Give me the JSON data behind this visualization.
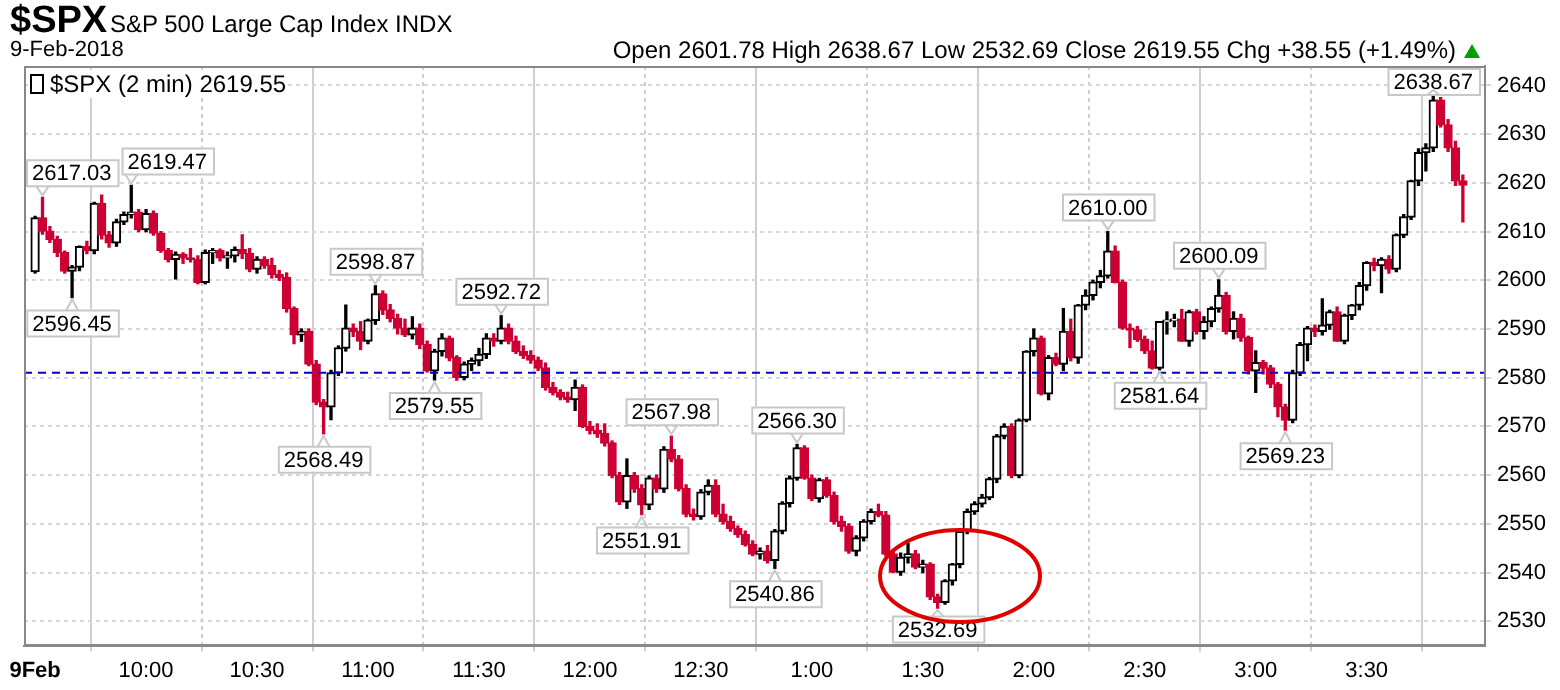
{
  "chart_data": {
    "type": "candlestick",
    "title": "$SPX",
    "subtitle": "S&P 500 Large Cap Index INDX",
    "annotations": [
      "9-Feb-2018",
      "Open 2601.78 High 2638.67 Low 2532.69 Close 2619.55 Chg +38.55 (+1.49%)",
      {
        "text": "2617.03",
        "x": "2018-02-09T09:32",
        "y": 2617.03
      },
      {
        "text": "2619.47",
        "x": "2018-02-09T09:56",
        "y": 2619.47
      },
      {
        "text": "2596.45",
        "x": "2018-02-09T09:40",
        "y": 2596.45
      },
      {
        "text": "2598.87",
        "x": "2018-02-09T11:02",
        "y": 2598.87
      },
      {
        "text": "2592.72",
        "x": "2018-02-09T11:36",
        "y": 2592.72
      },
      {
        "text": "2579.55",
        "x": "2018-02-09T11:18",
        "y": 2579.55
      },
      {
        "text": "2568.49",
        "x": "2018-02-09T10:48",
        "y": 2568.49
      },
      {
        "text": "2567.98",
        "x": "2018-02-09T12:22",
        "y": 2567.98
      },
      {
        "text": "2551.91",
        "x": "2018-02-09T12:14",
        "y": 2551.91
      },
      {
        "text": "2566.30",
        "x": "2018-02-09T12:56",
        "y": 2566.3
      },
      {
        "text": "2540.86",
        "x": "2018-02-09T12:50",
        "y": 2540.86
      },
      {
        "text": "2532.69",
        "x": "2018-02-09T13:34",
        "y": 2532.69
      },
      {
        "text": "2610.00",
        "x": "2018-02-09T14:20",
        "y": 2610.0
      },
      {
        "text": "2581.64",
        "x": "2018-02-09T14:34",
        "y": 2581.64
      },
      {
        "text": "2600.09",
        "x": "2018-02-09T14:50",
        "y": 2600.09
      },
      {
        "text": "2569.23",
        "x": "2018-02-09T15:08",
        "y": 2569.23
      },
      {
        "text": "2638.67",
        "x": "2018-02-09T15:48",
        "y": 2638.67
      }
    ],
    "x": [
      "2018-02-09T09:30",
      "2018-02-09T09:32",
      "2018-02-09T09:34",
      "2018-02-09T09:36",
      "2018-02-09T09:38",
      "2018-02-09T09:40",
      "2018-02-09T09:42",
      "2018-02-09T09:44",
      "2018-02-09T09:46",
      "2018-02-09T09:48",
      "2018-02-09T09:50",
      "2018-02-09T09:52",
      "2018-02-09T09:54",
      "2018-02-09T09:56",
      "2018-02-09T09:58",
      "2018-02-09T10:00",
      "2018-02-09T10:02",
      "2018-02-09T10:04",
      "2018-02-09T10:06",
      "2018-02-09T10:08",
      "2018-02-09T10:10",
      "2018-02-09T10:12",
      "2018-02-09T10:14",
      "2018-02-09T10:16",
      "2018-02-09T10:18",
      "2018-02-09T10:20",
      "2018-02-09T10:22",
      "2018-02-09T10:24",
      "2018-02-09T10:26",
      "2018-02-09T10:28",
      "2018-02-09T10:30",
      "2018-02-09T10:32",
      "2018-02-09T10:34",
      "2018-02-09T10:36",
      "2018-02-09T10:38",
      "2018-02-09T10:40",
      "2018-02-09T10:42",
      "2018-02-09T10:44",
      "2018-02-09T10:46",
      "2018-02-09T10:48",
      "2018-02-09T10:50",
      "2018-02-09T10:52",
      "2018-02-09T10:54",
      "2018-02-09T10:56",
      "2018-02-09T10:58",
      "2018-02-09T11:00",
      "2018-02-09T11:02",
      "2018-02-09T11:04",
      "2018-02-09T11:06",
      "2018-02-09T11:08",
      "2018-02-09T11:10",
      "2018-02-09T11:12",
      "2018-02-09T11:14",
      "2018-02-09T11:16",
      "2018-02-09T11:18",
      "2018-02-09T11:20",
      "2018-02-09T11:22",
      "2018-02-09T11:24",
      "2018-02-09T11:26",
      "2018-02-09T11:28",
      "2018-02-09T11:30",
      "2018-02-09T11:32",
      "2018-02-09T11:34",
      "2018-02-09T11:36",
      "2018-02-09T11:38",
      "2018-02-09T11:40",
      "2018-02-09T11:42",
      "2018-02-09T11:44",
      "2018-02-09T11:46",
      "2018-02-09T11:48",
      "2018-02-09T11:50",
      "2018-02-09T11:52",
      "2018-02-09T11:54",
      "2018-02-09T11:56",
      "2018-02-09T11:58",
      "2018-02-09T12:00",
      "2018-02-09T12:02",
      "2018-02-09T12:04",
      "2018-02-09T12:06",
      "2018-02-09T12:08",
      "2018-02-09T12:10",
      "2018-02-09T12:12",
      "2018-02-09T12:14",
      "2018-02-09T12:16",
      "2018-02-09T12:18",
      "2018-02-09T12:20",
      "2018-02-09T12:22",
      "2018-02-09T12:24",
      "2018-02-09T12:26",
      "2018-02-09T12:28",
      "2018-02-09T12:30",
      "2018-02-09T12:32",
      "2018-02-09T12:34",
      "2018-02-09T12:36",
      "2018-02-09T12:38",
      "2018-02-09T12:40",
      "2018-02-09T12:42",
      "2018-02-09T12:44",
      "2018-02-09T12:46",
      "2018-02-09T12:48",
      "2018-02-09T12:50",
      "2018-02-09T12:52",
      "2018-02-09T12:54",
      "2018-02-09T12:56",
      "2018-02-09T12:58",
      "2018-02-09T13:00",
      "2018-02-09T13:02",
      "2018-02-09T13:04",
      "2018-02-09T13:06",
      "2018-02-09T13:08",
      "2018-02-09T13:10",
      "2018-02-09T13:12",
      "2018-02-09T13:14",
      "2018-02-09T13:16",
      "2018-02-09T13:18",
      "2018-02-09T13:20",
      "2018-02-09T13:22",
      "2018-02-09T13:24",
      "2018-02-09T13:26",
      "2018-02-09T13:28",
      "2018-02-09T13:30",
      "2018-02-09T13:32",
      "2018-02-09T13:34",
      "2018-02-09T13:36",
      "2018-02-09T13:38",
      "2018-02-09T13:40",
      "2018-02-09T13:42",
      "2018-02-09T13:44",
      "2018-02-09T13:46",
      "2018-02-09T13:48",
      "2018-02-09T13:50",
      "2018-02-09T13:52",
      "2018-02-09T13:54",
      "2018-02-09T13:56",
      "2018-02-09T13:58",
      "2018-02-09T14:00",
      "2018-02-09T14:02",
      "2018-02-09T14:04",
      "2018-02-09T14:06",
      "2018-02-09T14:08",
      "2018-02-09T14:10",
      "2018-02-09T14:12",
      "2018-02-09T14:14",
      "2018-02-09T14:16",
      "2018-02-09T14:18",
      "2018-02-09T14:20",
      "2018-02-09T14:22",
      "2018-02-09T14:24",
      "2018-02-09T14:26",
      "2018-02-09T14:28",
      "2018-02-09T14:30",
      "2018-02-09T14:32",
      "2018-02-09T14:34",
      "2018-02-09T14:36",
      "2018-02-09T14:38",
      "2018-02-09T14:40",
      "2018-02-09T14:42",
      "2018-02-09T14:44",
      "2018-02-09T14:46",
      "2018-02-09T14:48",
      "2018-02-09T14:50",
      "2018-02-09T14:52",
      "2018-02-09T14:54",
      "2018-02-09T14:56",
      "2018-02-09T14:58",
      "2018-02-09T15:00",
      "2018-02-09T15:02",
      "2018-02-09T15:04",
      "2018-02-09T15:06",
      "2018-02-09T15:08",
      "2018-02-09T15:10",
      "2018-02-09T15:12",
      "2018-02-09T15:14",
      "2018-02-09T15:16",
      "2018-02-09T15:18",
      "2018-02-09T15:20",
      "2018-02-09T15:22",
      "2018-02-09T15:24",
      "2018-02-09T15:26",
      "2018-02-09T15:28",
      "2018-02-09T15:30",
      "2018-02-09T15:32",
      "2018-02-09T15:34",
      "2018-02-09T15:36",
      "2018-02-09T15:38",
      "2018-02-09T15:40",
      "2018-02-09T15:42",
      "2018-02-09T15:44",
      "2018-02-09T15:46",
      "2018-02-09T15:48",
      "2018-02-09T15:50",
      "2018-02-09T15:52",
      "2018-02-09T15:54",
      "2018-02-09T15:56"
    ],
    "series": [
      {
        "name": "$SPX (2 min) 2619.55",
        "color": "#000000",
        "ohlc": [
          [
            2601.78,
            2613.1,
            2601.5,
            2612.8
          ],
          [
            2612.8,
            2617.03,
            2609.5,
            2610.1
          ],
          [
            2610.1,
            2611,
            2607.8,
            2608.4
          ],
          [
            2608.4,
            2609,
            2604.9,
            2605.7
          ],
          [
            2605.7,
            2606,
            2601.5,
            2601.9
          ],
          [
            2601.9,
            2603,
            2596.45,
            2602.7
          ],
          [
            2602.7,
            2607,
            2602,
            2606.9
          ],
          [
            2606.9,
            2608,
            2605.5,
            2606.1
          ],
          [
            2606.1,
            2616,
            2605.5,
            2615.8
          ],
          [
            2615.8,
            2617.5,
            2608.5,
            2609.3
          ],
          [
            2609.3,
            2610,
            2606.8,
            2607.7
          ],
          [
            2607.7,
            2612.5,
            2607,
            2612
          ],
          [
            2612,
            2614,
            2611.5,
            2613.5
          ],
          [
            2613.5,
            2619.47,
            2612.8,
            2614
          ],
          [
            2614,
            2614.5,
            2610,
            2610.4
          ],
          [
            2610.4,
            2614.5,
            2610,
            2613.7
          ],
          [
            2613.7,
            2614.2,
            2609.3,
            2609.7
          ],
          [
            2609.7,
            2610,
            2605.8,
            2606.1
          ],
          [
            2606.1,
            2606.5,
            2603.8,
            2604.3
          ],
          [
            2604.3,
            2605.8,
            2600.3,
            2605.3
          ],
          [
            2605.3,
            2605.6,
            2603.5,
            2604.6
          ],
          [
            2604.6,
            2606.5,
            2603.8,
            2604.3
          ],
          [
            2604.3,
            2605,
            2599.3,
            2599.6
          ],
          [
            2599.6,
            2606.2,
            2599.3,
            2605.7
          ],
          [
            2605.7,
            2606.5,
            2603.5,
            2606.1
          ],
          [
            2606.1,
            2606.4,
            2604,
            2604.6
          ],
          [
            2604.6,
            2605.8,
            2602.5,
            2605
          ],
          [
            2605,
            2606.8,
            2603.8,
            2606.3
          ],
          [
            2606.3,
            2609.3,
            2604.5,
            2605.5
          ],
          [
            2605.5,
            2606.5,
            2601.8,
            2602.3
          ],
          [
            2602.3,
            2604.8,
            2601.5,
            2604.3
          ],
          [
            2604.3,
            2604.8,
            2602.5,
            2603
          ],
          [
            2603,
            2604.5,
            2600.5,
            2601.2
          ],
          [
            2601.2,
            2602,
            2600,
            2600.6
          ],
          [
            2600.6,
            2601.5,
            2593.5,
            2594.2
          ],
          [
            2594.2,
            2594.5,
            2587,
            2588.8
          ],
          [
            2588.8,
            2590,
            2587.5,
            2589.5
          ],
          [
            2589.5,
            2590,
            2582.5,
            2582.8
          ],
          [
            2582.8,
            2583.5,
            2574.5,
            2575
          ],
          [
            2575,
            2575.5,
            2568.49,
            2574
          ],
          [
            2574,
            2581.5,
            2571.4,
            2581
          ],
          [
            2581,
            2586.5,
            2580.5,
            2586.1
          ],
          [
            2586.1,
            2594.9,
            2585.5,
            2590.2
          ],
          [
            2590.2,
            2591,
            2588.5,
            2589.5
          ],
          [
            2589.5,
            2591.5,
            2585.8,
            2587.5
          ],
          [
            2587.5,
            2592,
            2587,
            2591.8
          ],
          [
            2591.8,
            2598.87,
            2591,
            2597.2
          ],
          [
            2597.2,
            2597.8,
            2593,
            2593.9
          ],
          [
            2593.9,
            2595,
            2591.5,
            2592.2
          ],
          [
            2592.2,
            2593,
            2589,
            2590.2
          ],
          [
            2590.2,
            2592,
            2588.5,
            2588.8
          ],
          [
            2588.8,
            2592.5,
            2588,
            2590.2
          ],
          [
            2590.2,
            2591,
            2586,
            2586.8
          ],
          [
            2586.8,
            2587.5,
            2581.2,
            2581.4
          ],
          [
            2581.4,
            2585.8,
            2579.55,
            2585.4
          ],
          [
            2585.4,
            2589,
            2584.5,
            2588.1
          ],
          [
            2588.1,
            2588.5,
            2583.5,
            2584.1
          ],
          [
            2584.1,
            2584.5,
            2579.5,
            2580.1
          ],
          [
            2580.1,
            2583.2,
            2579.6,
            2582.8
          ],
          [
            2582.8,
            2584,
            2581.5,
            2583.5
          ],
          [
            2583.5,
            2586,
            2582.5,
            2584.8
          ],
          [
            2584.8,
            2589,
            2584,
            2588.1
          ],
          [
            2588.1,
            2589,
            2586.5,
            2587.5
          ],
          [
            2587.5,
            2592.72,
            2587,
            2590.2
          ],
          [
            2590.2,
            2591,
            2587,
            2587.5
          ],
          [
            2587.5,
            2588.5,
            2585,
            2585.4
          ],
          [
            2585.4,
            2586.5,
            2584,
            2584.6
          ],
          [
            2584.6,
            2585.5,
            2583,
            2583.6
          ],
          [
            2583.6,
            2584.2,
            2581.5,
            2582
          ],
          [
            2582,
            2583,
            2577.5,
            2578
          ],
          [
            2578,
            2579,
            2576.5,
            2577
          ],
          [
            2577,
            2577.5,
            2575.5,
            2576
          ],
          [
            2576,
            2577,
            2575,
            2575.5
          ],
          [
            2575.5,
            2579.5,
            2573.3,
            2578
          ],
          [
            2578,
            2578.5,
            2569.8,
            2570
          ],
          [
            2570,
            2571,
            2568.5,
            2569.2
          ],
          [
            2569.2,
            2570.5,
            2567.8,
            2568.5
          ],
          [
            2568.5,
            2570.5,
            2566,
            2566.6
          ],
          [
            2566.6,
            2567,
            2559.5,
            2559.9
          ],
          [
            2559.9,
            2560.5,
            2554,
            2554.5
          ],
          [
            2554.5,
            2563.3,
            2553.2,
            2559.9
          ],
          [
            2559.9,
            2560.5,
            2556.5,
            2557.2
          ],
          [
            2557.2,
            2558,
            2551.91,
            2553.9
          ],
          [
            2553.9,
            2559.8,
            2553,
            2559.4
          ],
          [
            2559.4,
            2560,
            2556.5,
            2557.2
          ],
          [
            2557.2,
            2565.8,
            2556.5,
            2565.3
          ],
          [
            2565.3,
            2567.98,
            2562.8,
            2563.3
          ],
          [
            2563.3,
            2564,
            2556.8,
            2557.2
          ],
          [
            2557.2,
            2558,
            2551.5,
            2552
          ],
          [
            2552,
            2553,
            2550.8,
            2551.5
          ],
          [
            2551.5,
            2557,
            2551,
            2556.5
          ],
          [
            2556.5,
            2559,
            2556,
            2557.9
          ],
          [
            2557.9,
            2559,
            2551.5,
            2552
          ],
          [
            2552,
            2554,
            2550,
            2550.5
          ],
          [
            2550.5,
            2551.5,
            2548.5,
            2549
          ],
          [
            2549,
            2549.5,
            2547.3,
            2547.8
          ],
          [
            2547.8,
            2548.5,
            2545.5,
            2545.8
          ],
          [
            2545.8,
            2546.5,
            2543.5,
            2543.8
          ],
          [
            2543.8,
            2545,
            2542.8,
            2544.4
          ],
          [
            2544.4,
            2545.5,
            2542,
            2542.5
          ],
          [
            2542.5,
            2548.8,
            2540.86,
            2548.5
          ],
          [
            2548.5,
            2554.5,
            2548,
            2554.2
          ],
          [
            2554.2,
            2559.8,
            2553.5,
            2559.4
          ],
          [
            2559.4,
            2566.3,
            2559,
            2565.6
          ],
          [
            2565.6,
            2566,
            2559.2,
            2559.4
          ],
          [
            2559.4,
            2560,
            2554.8,
            2555.2
          ],
          [
            2555.2,
            2559.3,
            2554.5,
            2559
          ],
          [
            2559,
            2559.5,
            2555.5,
            2555.8
          ],
          [
            2555.8,
            2556.5,
            2550,
            2550.5
          ],
          [
            2550.5,
            2551.5,
            2548.5,
            2549.5
          ],
          [
            2549.5,
            2550,
            2544,
            2544.4
          ],
          [
            2544.4,
            2547.5,
            2543.5,
            2547.1
          ],
          [
            2547.1,
            2550.8,
            2546.5,
            2550.5
          ],
          [
            2550.5,
            2553,
            2550,
            2552.5
          ],
          [
            2552.5,
            2554,
            2551.5,
            2551.8
          ],
          [
            2551.8,
            2552.5,
            2543.5,
            2543.8
          ],
          [
            2543.8,
            2544.5,
            2540,
            2540.1
          ],
          [
            2540.1,
            2544,
            2539.5,
            2543.1
          ],
          [
            2543.1,
            2546,
            2542,
            2543.8
          ],
          [
            2543.8,
            2544.5,
            2540.8,
            2541.1
          ],
          [
            2541.1,
            2542.5,
            2540,
            2541.7
          ],
          [
            2541.7,
            2542,
            2534.5,
            2535
          ],
          [
            2535,
            2535.5,
            2532.69,
            2533.9
          ],
          [
            2533.9,
            2538.5,
            2533.5,
            2538.3
          ],
          [
            2538.3,
            2541.8,
            2537.5,
            2541.7
          ],
          [
            2541.7,
            2548.5,
            2541,
            2548.4
          ],
          [
            2548.4,
            2553,
            2548,
            2552.5
          ],
          [
            2552.5,
            2554.5,
            2552,
            2554.1
          ],
          [
            2554.1,
            2556,
            2553.5,
            2555.4
          ],
          [
            2555.4,
            2559.5,
            2555,
            2559.2
          ],
          [
            2559.2,
            2568.3,
            2558.5,
            2568
          ],
          [
            2568,
            2570.5,
            2567.5,
            2570
          ],
          [
            2570,
            2570.5,
            2559.5,
            2559.9
          ],
          [
            2559.9,
            2571.5,
            2559.5,
            2571.3
          ],
          [
            2571.3,
            2585.5,
            2571,
            2585.4
          ],
          [
            2585.4,
            2590,
            2584.5,
            2588.1
          ],
          [
            2588.1,
            2588.5,
            2576.5,
            2576.7
          ],
          [
            2576.7,
            2584.5,
            2575.5,
            2584.1
          ],
          [
            2584.1,
            2585,
            2582.5,
            2582.8
          ],
          [
            2582.8,
            2594.2,
            2581.5,
            2589.5
          ],
          [
            2589.5,
            2592,
            2583.5,
            2584.1
          ],
          [
            2584.1,
            2595,
            2583,
            2594.9
          ],
          [
            2594.9,
            2598,
            2594,
            2596.9
          ],
          [
            2596.9,
            2600,
            2596,
            2599.6
          ],
          [
            2599.6,
            2602,
            2598.5,
            2600.9
          ],
          [
            2600.9,
            2610.0,
            2600.5,
            2606
          ],
          [
            2606,
            2607,
            2599.5,
            2599.6
          ],
          [
            2599.6,
            2600,
            2590,
            2590.2
          ],
          [
            2590.2,
            2591,
            2586.2,
            2589.8
          ],
          [
            2589.8,
            2590.5,
            2587.5,
            2587.9
          ],
          [
            2587.9,
            2588.5,
            2585,
            2585.5
          ],
          [
            2585.5,
            2587.5,
            2581.8,
            2582
          ],
          [
            2582,
            2591.5,
            2581.64,
            2591.5
          ],
          [
            2591.5,
            2593.5,
            2589,
            2591.8
          ],
          [
            2591.8,
            2593,
            2590.5,
            2592
          ],
          [
            2592,
            2594,
            2587.5,
            2587.5
          ],
          [
            2587.5,
            2593.8,
            2586.5,
            2593.5
          ],
          [
            2593.5,
            2594,
            2589,
            2589.5
          ],
          [
            2589.5,
            2592.5,
            2588,
            2591.5
          ],
          [
            2591.5,
            2594.5,
            2590.5,
            2594.2
          ],
          [
            2594.2,
            2600.09,
            2593.5,
            2596.9
          ],
          [
            2596.9,
            2597.5,
            2589,
            2589.5
          ],
          [
            2589.5,
            2593.5,
            2588,
            2592.2
          ],
          [
            2592.2,
            2593,
            2587.5,
            2588.2
          ],
          [
            2588.2,
            2588.5,
            2580.8,
            2581.4
          ],
          [
            2581.4,
            2585.5,
            2577,
            2583.1
          ],
          [
            2583.1,
            2583.5,
            2580.8,
            2582
          ],
          [
            2582,
            2582.5,
            2578,
            2578.7
          ],
          [
            2578.7,
            2579,
            2572,
            2574
          ],
          [
            2574,
            2574.5,
            2569.23,
            2571.3
          ],
          [
            2571.3,
            2581.5,
            2570.8,
            2581
          ],
          [
            2581,
            2587.2,
            2580.5,
            2586.8
          ],
          [
            2586.8,
            2590.5,
            2583.5,
            2590.2
          ],
          [
            2590.2,
            2590.8,
            2588.5,
            2589.5
          ],
          [
            2589.5,
            2596.2,
            2588.8,
            2590.8
          ],
          [
            2590.8,
            2593.8,
            2590,
            2593.5
          ],
          [
            2593.5,
            2594.5,
            2587.5,
            2587.5
          ],
          [
            2587.5,
            2593,
            2587,
            2592.8
          ],
          [
            2592.8,
            2595,
            2592,
            2594.9
          ],
          [
            2594.9,
            2599.5,
            2594,
            2598.9
          ],
          [
            2598.9,
            2603.8,
            2598,
            2603.6
          ],
          [
            2603.6,
            2604.5,
            2602,
            2603
          ],
          [
            2603,
            2604.6,
            2597.5,
            2604.3
          ],
          [
            2604.3,
            2605,
            2601.5,
            2602.3
          ],
          [
            2602.3,
            2609.5,
            2601.8,
            2609.3
          ],
          [
            2609.3,
            2613.5,
            2608.8,
            2613
          ],
          [
            2613,
            2620.5,
            2612.5,
            2620.4
          ],
          [
            2620.4,
            2627,
            2619.5,
            2626.2
          ],
          [
            2626.2,
            2628,
            2622.5,
            2627.2
          ],
          [
            2627.2,
            2638.67,
            2626.5,
            2637
          ],
          [
            2637,
            2637.5,
            2631.5,
            2631.9
          ],
          [
            2631.9,
            2633,
            2626.5,
            2627.2
          ],
          [
            2627.2,
            2628.5,
            2619.5,
            2620.4
          ],
          [
            2620.4,
            2621.6,
            2612,
            2619.55
          ]
        ],
        "colors": [
          "#000000",
          "#cc0033",
          "#cc0033",
          "#cc0033",
          "#cc0033",
          "#000000",
          "#000000",
          "#cc0033",
          "#000000",
          "#cc0033",
          "#cc0033",
          "#000000",
          "#000000",
          "#000000",
          "#cc0033",
          "#000000",
          "#cc0033",
          "#cc0033",
          "#cc0033",
          "#000000",
          "#cc0033",
          "#cc0033",
          "#cc0033",
          "#000000",
          "#000000",
          "#cc0033",
          "#000000",
          "#000000",
          "#cc0033",
          "#cc0033",
          "#000000",
          "#cc0033",
          "#cc0033",
          "#cc0033",
          "#cc0033",
          "#cc0033",
          "#000000",
          "#cc0033",
          "#cc0033",
          "#cc0033",
          "#000000",
          "#000000",
          "#000000",
          "#cc0033",
          "#cc0033",
          "#000000",
          "#000000",
          "#cc0033",
          "#cc0033",
          "#cc0033",
          "#cc0033",
          "#000000",
          "#cc0033",
          "#cc0033",
          "#000000",
          "#000000",
          "#cc0033",
          "#cc0033",
          "#000000",
          "#000000",
          "#000000",
          "#000000",
          "#cc0033",
          "#000000",
          "#cc0033",
          "#cc0033",
          "#cc0033",
          "#cc0033",
          "#cc0033",
          "#cc0033",
          "#cc0033",
          "#cc0033",
          "#cc0033",
          "#000000",
          "#cc0033",
          "#cc0033",
          "#cc0033",
          "#cc0033",
          "#cc0033",
          "#cc0033",
          "#000000",
          "#cc0033",
          "#cc0033",
          "#000000",
          "#cc0033",
          "#000000",
          "#cc0033",
          "#cc0033",
          "#cc0033",
          "#cc0033",
          "#000000",
          "#000000",
          "#cc0033",
          "#cc0033",
          "#cc0033",
          "#cc0033",
          "#cc0033",
          "#cc0033",
          "#000000",
          "#cc0033",
          "#000000",
          "#000000",
          "#000000",
          "#000000",
          "#cc0033",
          "#cc0033",
          "#000000",
          "#cc0033",
          "#cc0033",
          "#cc0033",
          "#cc0033",
          "#000000",
          "#000000",
          "#000000",
          "#cc0033",
          "#cc0033",
          "#cc0033",
          "#000000",
          "#000000",
          "#cc0033",
          "#000000",
          "#cc0033",
          "#cc0033",
          "#000000",
          "#000000",
          "#000000",
          "#000000",
          "#000000",
          "#000000",
          "#000000",
          "#000000",
          "#000000",
          "#cc0033",
          "#000000",
          "#000000",
          "#000000",
          "#cc0033",
          "#000000",
          "#cc0033",
          "#000000",
          "#cc0033",
          "#000000",
          "#000000",
          "#000000",
          "#000000",
          "#000000",
          "#cc0033",
          "#cc0033",
          "#cc0033",
          "#cc0033",
          "#cc0033",
          "#cc0033",
          "#000000",
          "#000000",
          "#000000",
          "#cc0033",
          "#000000",
          "#cc0033",
          "#000000",
          "#000000",
          "#000000",
          "#cc0033",
          "#000000",
          "#cc0033",
          "#cc0033",
          "#000000",
          "#cc0033",
          "#cc0033",
          "#cc0033",
          "#cc0033",
          "#000000",
          "#000000",
          "#000000",
          "#cc0033",
          "#000000",
          "#000000",
          "#cc0033",
          "#000000",
          "#000000",
          "#000000",
          "#000000",
          "#cc0033",
          "#000000",
          "#cc0033",
          "#000000",
          "#000000",
          "#000000",
          "#000000",
          "#000000",
          "#000000",
          "#cc0033",
          "#cc0033",
          "#cc0033",
          "#cc0033"
        ]
      }
    ],
    "xlim": [
      "2018-02-09T09:27",
      "2018-02-09T16:02"
    ],
    "xticks": [
      {
        "value": "2018-02-09T09:30",
        "label": "9Feb"
      },
      {
        "value": "2018-02-09T10:00",
        "label": "10:00"
      },
      {
        "value": "2018-02-09T10:30",
        "label": "10:30"
      },
      {
        "value": "2018-02-09T11:00",
        "label": "11:00"
      },
      {
        "value": "2018-02-09T11:30",
        "label": "11:30"
      },
      {
        "value": "2018-02-09T12:00",
        "label": "12:00"
      },
      {
        "value": "2018-02-09T12:30",
        "label": "12:30"
      },
      {
        "value": "2018-02-09T13:00",
        "label": "1:00"
      },
      {
        "value": "2018-02-09T13:30",
        "label": "1:30"
      },
      {
        "value": "2018-02-09T14:00",
        "label": "2:00"
      },
      {
        "value": "2018-02-09T14:30",
        "label": "2:30"
      },
      {
        "value": "2018-02-09T15:00",
        "label": "3:00"
      },
      {
        "value": "2018-02-09T15:30",
        "label": "3:30"
      }
    ],
    "ylim": [
      2525,
      2644
    ],
    "yticks": [
      2530,
      2540,
      2550,
      2560,
      2570,
      2580,
      2590,
      2600,
      2610,
      2620,
      2630,
      2640
    ],
    "ref_lines": [
      {
        "axis": "y",
        "value": 2581.0,
        "color": "#0000cc",
        "line_style": "dashed"
      }
    ],
    "grid": true,
    "legend": "top left"
  }
}
